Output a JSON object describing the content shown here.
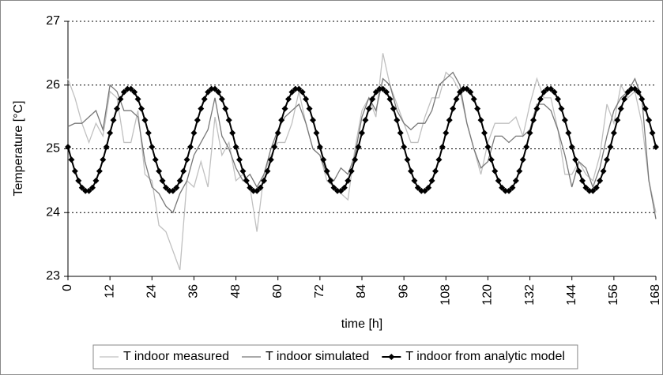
{
  "chart_data": {
    "type": "line",
    "xlabel": "time [h]",
    "ylabel": "Temperature [°C]",
    "xlim": [
      0,
      168
    ],
    "ylim": [
      23,
      27
    ],
    "xticks": [
      0,
      12,
      24,
      36,
      48,
      60,
      72,
      84,
      96,
      108,
      120,
      132,
      144,
      156,
      168
    ],
    "yticks": [
      23,
      24,
      25,
      26,
      27
    ],
    "grid": true,
    "legend": "bottom",
    "series": [
      {
        "name": "T indoor measured",
        "color": "#c0c0c0",
        "width": 1.3,
        "marker": null,
        "x": [
          0,
          2,
          4,
          6,
          8,
          10,
          12,
          14,
          16,
          18,
          20,
          22,
          24,
          26,
          28,
          30,
          32,
          34,
          36,
          38,
          40,
          42,
          44,
          46,
          48,
          50,
          52,
          54,
          56,
          58,
          60,
          62,
          64,
          66,
          68,
          70,
          72,
          74,
          76,
          78,
          80,
          82,
          84,
          86,
          88,
          90,
          92,
          94,
          96,
          98,
          100,
          102,
          104,
          106,
          108,
          110,
          112,
          114,
          116,
          118,
          120,
          122,
          124,
          126,
          128,
          130,
          132,
          134,
          136,
          138,
          140,
          142,
          144,
          146,
          148,
          150,
          152,
          154,
          156,
          158,
          160,
          162,
          164,
          166,
          168
        ],
        "values": [
          26.1,
          25.8,
          25.4,
          25.1,
          25.4,
          25.2,
          25.9,
          25.8,
          25.1,
          25.1,
          25.6,
          24.6,
          24.5,
          23.8,
          23.7,
          23.4,
          23.1,
          24.5,
          24.4,
          24.8,
          24.4,
          25.5,
          24.9,
          25.1,
          24.5,
          24.6,
          24.4,
          23.7,
          24.6,
          24.9,
          25.1,
          25.1,
          25.4,
          25.9,
          25.4,
          25.0,
          24.9,
          24.5,
          24.4,
          24.3,
          24.2,
          25.0,
          25.6,
          25.8,
          25.5,
          26.5,
          26.0,
          25.7,
          25.4,
          25.1,
          25.1,
          25.5,
          25.8,
          25.8,
          26.2,
          26.1,
          25.9,
          25.4,
          25.0,
          24.6,
          25.1,
          25.4,
          25.4,
          25.4,
          25.5,
          25.2,
          25.7,
          26.1,
          25.8,
          25.8,
          25.3,
          24.6,
          24.6,
          24.8,
          24.6,
          24.5,
          24.9,
          25.7,
          25.4,
          26.0,
          25.8,
          25.9,
          25.4,
          24.5,
          24.0
        ]
      },
      {
        "name": "T indoor simulated",
        "color": "#777777",
        "width": 1.3,
        "marker": null,
        "x": [
          0,
          2,
          4,
          6,
          8,
          10,
          12,
          14,
          16,
          18,
          20,
          22,
          24,
          26,
          28,
          30,
          32,
          34,
          36,
          38,
          40,
          42,
          44,
          46,
          48,
          50,
          52,
          54,
          56,
          58,
          60,
          62,
          64,
          66,
          68,
          70,
          72,
          74,
          76,
          78,
          80,
          82,
          84,
          86,
          88,
          90,
          92,
          94,
          96,
          98,
          100,
          102,
          104,
          106,
          108,
          110,
          112,
          114,
          116,
          118,
          120,
          122,
          124,
          126,
          128,
          130,
          132,
          134,
          136,
          138,
          140,
          142,
          144,
          146,
          148,
          150,
          152,
          154,
          156,
          158,
          160,
          162,
          164,
          166,
          168
        ],
        "values": [
          25.35,
          25.4,
          25.4,
          25.5,
          25.6,
          25.3,
          26.0,
          25.9,
          25.6,
          25.6,
          25.5,
          24.8,
          24.4,
          24.3,
          24.1,
          24.0,
          24.3,
          24.5,
          24.9,
          25.1,
          25.3,
          25.8,
          25.2,
          25.0,
          24.7,
          24.5,
          24.6,
          24.4,
          24.6,
          25.0,
          25.3,
          25.5,
          25.6,
          25.7,
          25.4,
          25.0,
          24.9,
          24.6,
          24.5,
          24.7,
          24.6,
          24.9,
          25.5,
          25.8,
          25.6,
          26.1,
          26.0,
          25.6,
          25.4,
          25.3,
          25.4,
          25.4,
          25.6,
          26.0,
          26.1,
          26.2,
          26.0,
          25.4,
          25.0,
          24.7,
          24.8,
          25.2,
          25.2,
          25.1,
          25.2,
          25.2,
          25.3,
          25.7,
          25.7,
          25.6,
          25.3,
          24.9,
          24.4,
          24.8,
          24.7,
          24.4,
          24.7,
          25.2,
          25.6,
          25.8,
          25.9,
          26.1,
          25.8,
          24.5,
          23.9
        ]
      },
      {
        "name": "T indoor from analytic model",
        "color": "#000000",
        "width": 2,
        "marker": "diamond",
        "x": [
          0,
          1,
          2,
          3,
          4,
          5,
          6,
          7,
          8,
          9,
          10,
          11,
          12,
          13,
          14,
          15,
          16,
          17,
          18,
          19,
          20,
          21,
          22,
          23,
          24,
          25,
          26,
          27,
          28,
          29,
          30,
          31,
          32,
          33,
          34,
          35,
          36,
          37,
          38,
          39,
          40,
          41,
          42,
          43,
          44,
          45,
          46,
          47,
          48,
          49,
          50,
          51,
          52,
          53,
          54,
          55,
          56,
          57,
          58,
          59,
          60,
          61,
          62,
          63,
          64,
          65,
          66,
          67,
          68,
          69,
          70,
          71,
          72,
          73,
          74,
          75,
          76,
          77,
          78,
          79,
          80,
          81,
          82,
          83,
          84,
          85,
          86,
          87,
          88,
          89,
          90,
          91,
          92,
          93,
          94,
          95,
          96,
          97,
          98,
          99,
          100,
          101,
          102,
          103,
          104,
          105,
          106,
          107,
          108,
          109,
          110,
          111,
          112,
          113,
          114,
          115,
          116,
          117,
          118,
          119,
          120,
          121,
          122,
          123,
          124,
          125,
          126,
          127,
          128,
          129,
          130,
          131,
          132,
          133,
          134,
          135,
          136,
          137,
          138,
          139,
          140,
          141,
          142,
          143,
          144,
          145,
          146,
          147,
          148,
          149,
          150,
          151,
          152,
          153,
          154,
          155,
          156,
          157,
          158,
          159,
          160,
          161,
          162,
          163,
          164,
          165,
          166,
          167,
          168
        ],
        "values": [
          25.03,
          24.83,
          24.65,
          24.5,
          24.39,
          24.34,
          24.34,
          24.39,
          24.5,
          24.65,
          24.83,
          25.03,
          25.25,
          25.45,
          25.63,
          25.78,
          25.89,
          25.94,
          25.94,
          25.89,
          25.78,
          25.63,
          25.45,
          25.25,
          25.03,
          24.83,
          24.65,
          24.5,
          24.39,
          24.34,
          24.34,
          24.39,
          24.5,
          24.65,
          24.83,
          25.03,
          25.25,
          25.45,
          25.63,
          25.78,
          25.89,
          25.94,
          25.94,
          25.89,
          25.78,
          25.63,
          25.45,
          25.25,
          25.03,
          24.83,
          24.65,
          24.5,
          24.39,
          24.34,
          24.34,
          24.39,
          24.5,
          24.65,
          24.83,
          25.03,
          25.25,
          25.45,
          25.63,
          25.78,
          25.89,
          25.94,
          25.94,
          25.89,
          25.78,
          25.63,
          25.45,
          25.25,
          25.03,
          24.83,
          24.65,
          24.5,
          24.39,
          24.34,
          24.34,
          24.39,
          24.5,
          24.65,
          24.83,
          25.03,
          25.25,
          25.45,
          25.63,
          25.78,
          25.89,
          25.94,
          25.94,
          25.89,
          25.78,
          25.63,
          25.45,
          25.25,
          25.03,
          24.83,
          24.65,
          24.5,
          24.39,
          24.34,
          24.34,
          24.39,
          24.5,
          24.65,
          24.83,
          25.03,
          25.25,
          25.45,
          25.63,
          25.78,
          25.89,
          25.94,
          25.94,
          25.89,
          25.78,
          25.63,
          25.45,
          25.25,
          25.03,
          24.83,
          24.65,
          24.5,
          24.39,
          24.34,
          24.34,
          24.39,
          24.5,
          24.65,
          24.83,
          25.03,
          25.25,
          25.45,
          25.63,
          25.78,
          25.89,
          25.94,
          25.94,
          25.89,
          25.78,
          25.63,
          25.45,
          25.25,
          25.03,
          24.83,
          24.65,
          24.5,
          24.39,
          24.34,
          24.34,
          24.39,
          24.5,
          24.65,
          24.83,
          25.03,
          25.25,
          25.45,
          25.63,
          25.78,
          25.89,
          25.94,
          25.94,
          25.89,
          25.78,
          25.63,
          25.45,
          25.25,
          25.03
        ]
      }
    ]
  }
}
